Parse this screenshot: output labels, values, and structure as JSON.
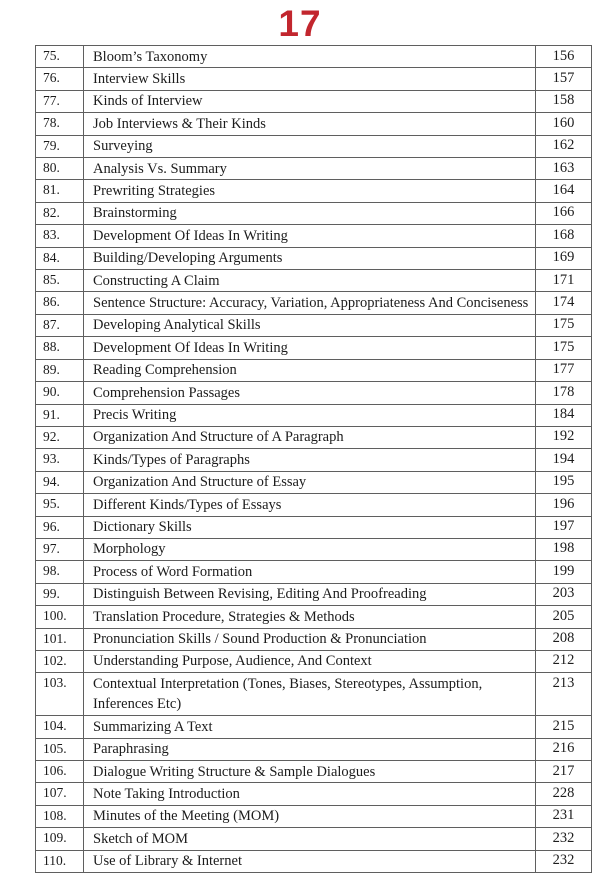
{
  "page": {
    "number": "17",
    "accent_color": "#c2262e"
  },
  "toc": {
    "rows": [
      {
        "no": "75.",
        "title": "Bloom’s Taxonomy",
        "page": "156"
      },
      {
        "no": "76.",
        "title": "Interview Skills",
        "page": "157"
      },
      {
        "no": "77.",
        "title": "Kinds of Interview",
        "page": "158"
      },
      {
        "no": "78.",
        "title": "Job Interviews & Their Kinds",
        "page": "160"
      },
      {
        "no": "79.",
        "title": "Surveying",
        "page": "162"
      },
      {
        "no": "80.",
        "title": "Analysis Vs. Summary",
        "page": "163"
      },
      {
        "no": "81.",
        "title": "Prewriting Strategies",
        "page": "164"
      },
      {
        "no": "82.",
        "title": "Brainstorming",
        "page": "166"
      },
      {
        "no": "83.",
        "title": "Development Of Ideas In Writing",
        "page": "168"
      },
      {
        "no": "84.",
        "title": "Building/Developing Arguments",
        "page": "169"
      },
      {
        "no": "85.",
        "title": "Constructing A Claim",
        "page": "171"
      },
      {
        "no": "86.",
        "title": "Sentence Structure: Accuracy, Variation, Appropriateness And Conciseness",
        "page": "174"
      },
      {
        "no": "87.",
        "title": "Developing Analytical Skills",
        "page": "175"
      },
      {
        "no": "88.",
        "title": "Development Of Ideas In Writing",
        "page": "175"
      },
      {
        "no": "89.",
        "title": "Reading Comprehension",
        "page": "177"
      },
      {
        "no": "90.",
        "title": "Comprehension Passages",
        "page": "178"
      },
      {
        "no": "91.",
        "title": "Precis Writing",
        "page": "184"
      },
      {
        "no": "92.",
        "title": "Organization And Structure of A Paragraph",
        "page": "192"
      },
      {
        "no": "93.",
        "title": "Kinds/Types of Paragraphs",
        "page": "194"
      },
      {
        "no": "94.",
        "title": "Organization And Structure of Essay",
        "page": "195"
      },
      {
        "no": "95.",
        "title": "Different Kinds/Types of Essays",
        "page": "196"
      },
      {
        "no": "96.",
        "title": "Dictionary Skills",
        "page": "197"
      },
      {
        "no": "97.",
        "title": "Morphology",
        "page": "198"
      },
      {
        "no": "98.",
        "title": "Process of Word Formation",
        "page": "199"
      },
      {
        "no": "99.",
        "title": "Distinguish Between Revising, Editing And Proofreading",
        "page": "203"
      },
      {
        "no": "100.",
        "title": "Translation Procedure, Strategies & Methods",
        "page": "205"
      },
      {
        "no": "101.",
        "title": "Pronunciation Skills / Sound Production & Pronunciation",
        "page": "208"
      },
      {
        "no": "102.",
        "title": "Understanding Purpose, Audience, And Context",
        "page": "212"
      },
      {
        "no": "103.",
        "title": "Contextual Interpretation (Tones, Biases, Stereotypes, Assumption, Inferences Etc)",
        "page": "213"
      },
      {
        "no": "104.",
        "title": "Summarizing A Text",
        "page": "215"
      },
      {
        "no": "105.",
        "title": "Paraphrasing",
        "page": "216"
      },
      {
        "no": "106.",
        "title": "Dialogue Writing Structure & Sample Dialogues",
        "page": "217"
      },
      {
        "no": "107.",
        "title": "Note Taking Introduction",
        "page": "228"
      },
      {
        "no": "108.",
        "title": "Minutes of the Meeting (MOM)",
        "page": "231"
      },
      {
        "no": "109.",
        "title": "Sketch of MOM",
        "page": "232"
      },
      {
        "no": "110.",
        "title": "Use of Library & Internet",
        "page": "232"
      }
    ]
  }
}
